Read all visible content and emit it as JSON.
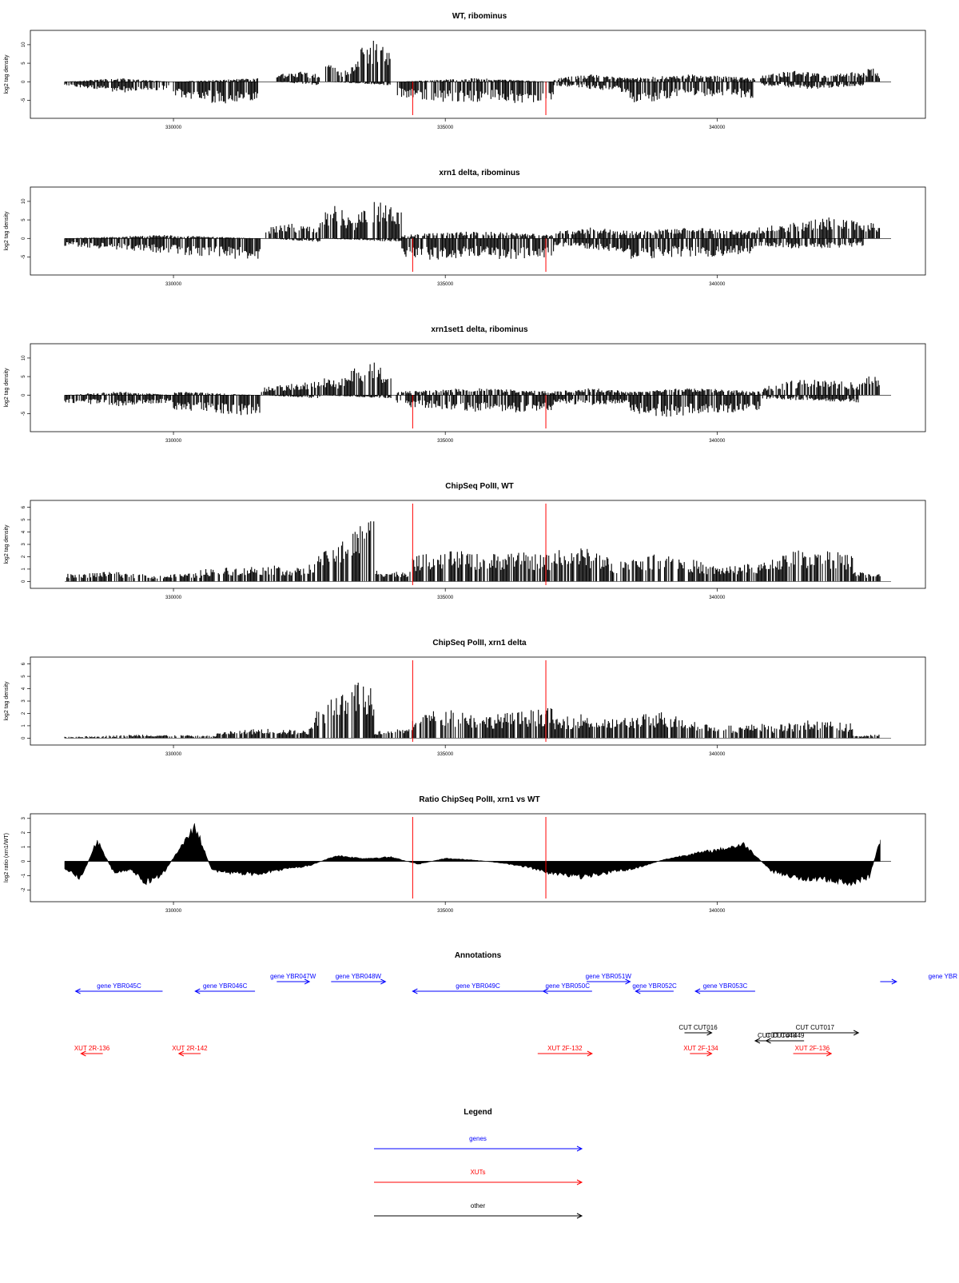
{
  "colors": {
    "genes": "#0000ff",
    "xuts": "#ff0000",
    "other": "#000000",
    "marker": "#ff0000",
    "bars": "#000000"
  },
  "x_range": [
    328000,
    343200
  ],
  "x_ticks": [
    "330000",
    "335000",
    "340000"
  ],
  "x_tick_values": [
    330000,
    335000,
    340000
  ],
  "markers_x": [
    334400,
    336850
  ],
  "chart_data": [
    {
      "type": "bar",
      "title": "WT, ribominus",
      "ylabel": "log2 tag density",
      "ylim": [
        -9,
        13
      ],
      "yticks": [
        "-5",
        "0",
        "5",
        "10"
      ],
      "ytick_values": [
        -5,
        0,
        5,
        10
      ],
      "segments": [
        {
          "x": [
            328000,
            330000
          ],
          "pos": [
            0,
            1,
            0
          ],
          "neg": [
            1,
            3,
            2
          ]
        },
        {
          "x": [
            330000,
            331600
          ],
          "pos": [
            0,
            1
          ],
          "neg": [
            4,
            6,
            5
          ]
        },
        {
          "x": [
            331900,
            332700
          ],
          "pos": [
            2,
            3,
            2
          ],
          "neg": [
            0,
            1
          ]
        },
        {
          "x": [
            332800,
            334000
          ],
          "pos": [
            6,
            3,
            4,
            11,
            12,
            9
          ],
          "neg": [
            0,
            1
          ]
        },
        {
          "x": [
            334100,
            337000
          ],
          "pos": [
            0,
            1,
            0
          ],
          "neg": [
            4,
            5,
            6,
            5,
            6,
            5
          ]
        },
        {
          "x": [
            337000,
            338400
          ],
          "pos": [
            1,
            2,
            1
          ],
          "neg": [
            1,
            2,
            3
          ]
        },
        {
          "x": [
            338400,
            340700
          ],
          "pos": [
            1,
            2,
            1
          ],
          "neg": [
            6,
            5,
            4,
            4,
            5
          ]
        },
        {
          "x": [
            340800,
            342700
          ],
          "pos": [
            2,
            3,
            2,
            3
          ],
          "neg": [
            1,
            2,
            1
          ]
        },
        {
          "x": [
            342700,
            343000
          ],
          "pos": [
            3,
            4,
            2
          ],
          "neg": [
            0
          ]
        }
      ]
    },
    {
      "type": "bar",
      "title": "xrn1 delta, ribominus",
      "ylabel": "log2 tag density",
      "ylim": [
        -9,
        13
      ],
      "yticks": [
        "-5",
        "0",
        "5",
        "10"
      ],
      "ytick_values": [
        -5,
        0,
        5,
        10
      ],
      "segments": [
        {
          "x": [
            328000,
            331600
          ],
          "pos": [
            0,
            1,
            0
          ],
          "neg": [
            2,
            3,
            4,
            5,
            6
          ]
        },
        {
          "x": [
            331700,
            332700
          ],
          "pos": [
            3,
            4,
            3
          ],
          "neg": [
            0,
            1
          ]
        },
        {
          "x": [
            332700,
            334200
          ],
          "pos": [
            7,
            9,
            5,
            10,
            11,
            8
          ],
          "neg": [
            0,
            1
          ]
        },
        {
          "x": [
            334200,
            337000
          ],
          "pos": [
            1,
            2,
            1
          ],
          "neg": [
            5,
            6,
            5,
            6,
            5
          ]
        },
        {
          "x": [
            337000,
            338400
          ],
          "pos": [
            2,
            3,
            2
          ],
          "neg": [
            2,
            3,
            4
          ]
        },
        {
          "x": [
            338400,
            340700
          ],
          "pos": [
            2,
            3,
            2
          ],
          "neg": [
            6,
            5,
            5,
            4
          ]
        },
        {
          "x": [
            340700,
            342700
          ],
          "pos": [
            3,
            4,
            5,
            6,
            4
          ],
          "neg": [
            2,
            3,
            2
          ]
        },
        {
          "x": [
            342700,
            343000
          ],
          "pos": [
            4,
            5,
            3
          ],
          "neg": [
            0
          ]
        }
      ]
    },
    {
      "type": "bar",
      "title": "xrn1set1 delta, ribominus",
      "ylabel": "log2 tag density",
      "ylim": [
        -9,
        13
      ],
      "yticks": [
        "-5",
        "0",
        "5",
        "10"
      ],
      "ytick_values": [
        -5,
        0,
        5,
        10
      ],
      "segments": [
        {
          "x": [
            328000,
            330000
          ],
          "pos": [
            0,
            1,
            0
          ],
          "neg": [
            2,
            3,
            2
          ]
        },
        {
          "x": [
            330000,
            331600
          ],
          "pos": [
            1,
            0
          ],
          "neg": [
            4,
            5,
            6
          ]
        },
        {
          "x": [
            331600,
            332700
          ],
          "pos": [
            2,
            3,
            4
          ],
          "neg": [
            0,
            1
          ]
        },
        {
          "x": [
            332700,
            334000
          ],
          "pos": [
            5,
            4,
            8,
            9,
            6
          ],
          "neg": [
            0,
            1
          ]
        },
        {
          "x": [
            334100,
            337000
          ],
          "pos": [
            1,
            2,
            1
          ],
          "neg": [
            3,
            4,
            5,
            4
          ]
        },
        {
          "x": [
            337000,
            338400
          ],
          "pos": [
            1,
            2,
            1
          ],
          "neg": [
            2,
            3,
            2
          ]
        },
        {
          "x": [
            338400,
            340800
          ],
          "pos": [
            1,
            2,
            1
          ],
          "neg": [
            5,
            6,
            5,
            4
          ]
        },
        {
          "x": [
            340800,
            342600
          ],
          "pos": [
            2,
            4,
            5,
            3
          ],
          "neg": [
            1,
            2
          ]
        },
        {
          "x": [
            342600,
            343000
          ],
          "pos": [
            3,
            6,
            4
          ],
          "neg": [
            0
          ]
        }
      ]
    },
    {
      "type": "bar",
      "title": "ChipSeq PolII, WT",
      "ylabel": "log2 tag density",
      "ylim": [
        -0.3,
        6.3
      ],
      "yticks": [
        "0",
        "1",
        "2",
        "3",
        "4",
        "5",
        "6"
      ],
      "ytick_values": [
        0,
        1,
        2,
        3,
        4,
        5,
        6
      ],
      "segments": [
        {
          "x": [
            328000,
            330500
          ],
          "pos": [
            0.6,
            0.8,
            0.5,
            0.7
          ],
          "neg": [
            0
          ]
        },
        {
          "x": [
            330500,
            332500
          ],
          "pos": [
            1,
            1.2,
            1.3,
            1
          ],
          "neg": [
            0
          ]
        },
        {
          "x": [
            332500,
            333700
          ],
          "pos": [
            1.5,
            2.5,
            3.5,
            4.5,
            5.5
          ],
          "neg": [
            0
          ]
        },
        {
          "x": [
            333700,
            334400
          ],
          "pos": [
            1,
            0.8,
            0.9
          ],
          "neg": [
            0
          ]
        },
        {
          "x": [
            334400,
            337000
          ],
          "pos": [
            2,
            2.6,
            2.2,
            2.4,
            2.1
          ],
          "neg": [
            0
          ]
        },
        {
          "x": [
            337000,
            338000
          ],
          "pos": [
            2.5,
            2.8,
            2.2
          ],
          "neg": [
            0
          ]
        },
        {
          "x": [
            338000,
            341000
          ],
          "pos": [
            1.5,
            2.5,
            1.2,
            1.6
          ],
          "neg": [
            0
          ]
        },
        {
          "x": [
            341000,
            342500
          ],
          "pos": [
            2,
            2.8,
            2.2
          ],
          "neg": [
            0
          ]
        },
        {
          "x": [
            342500,
            343000
          ],
          "pos": [
            0.8,
            0.6
          ],
          "neg": [
            0
          ]
        }
      ]
    },
    {
      "type": "bar",
      "title": "ChipSeq PolII, xrn1 delta",
      "ylabel": "log2 tag density",
      "ylim": [
        -0.3,
        6.3
      ],
      "yticks": [
        "0",
        "1",
        "2",
        "3",
        "4",
        "5",
        "6"
      ],
      "ytick_values": [
        0,
        1,
        2,
        3,
        4,
        5,
        6
      ],
      "segments": [
        {
          "x": [
            328000,
            330800
          ],
          "pos": [
            0.1,
            0.3,
            0.2
          ],
          "neg": [
            0
          ]
        },
        {
          "x": [
            330800,
            332500
          ],
          "pos": [
            0.5,
            0.8,
            0.6
          ],
          "neg": [
            0
          ]
        },
        {
          "x": [
            332500,
            333700
          ],
          "pos": [
            1.5,
            3,
            4,
            4.8,
            4.5
          ],
          "neg": [
            0
          ]
        },
        {
          "x": [
            333700,
            334400
          ],
          "pos": [
            0.6,
            0.8
          ],
          "neg": [
            0
          ]
        },
        {
          "x": [
            334400,
            337000
          ],
          "pos": [
            2,
            2.4,
            1.8,
            2.2,
            2.5
          ],
          "neg": [
            0
          ]
        },
        {
          "x": [
            337000,
            338000
          ],
          "pos": [
            1.5,
            2,
            1.6
          ],
          "neg": [
            0
          ]
        },
        {
          "x": [
            338000,
            341000
          ],
          "pos": [
            1.5,
            2.2,
            1,
            1.2
          ],
          "neg": [
            0
          ]
        },
        {
          "x": [
            341000,
            342500
          ],
          "pos": [
            1,
            1.5,
            1.2
          ],
          "neg": [
            0
          ]
        },
        {
          "x": [
            342500,
            343000
          ],
          "pos": [
            0.2,
            0.3
          ],
          "neg": [
            0
          ]
        }
      ]
    },
    {
      "type": "area",
      "title": "Ratio ChipSeq PolII, xrn1 vs WT",
      "ylabel": "log2 ratio (xrn1/WT)",
      "ylim": [
        -2.6,
        3.1
      ],
      "yticks": [
        "-2",
        "-1",
        "0",
        "1",
        "2",
        "3"
      ],
      "ytick_values": [
        -2,
        -1,
        0,
        1,
        2,
        3
      ],
      "x": [
        328000,
        328300,
        328600,
        328900,
        329200,
        329500,
        329800,
        330100,
        330400,
        330700,
        331000,
        331500,
        332000,
        332500,
        333000,
        333500,
        334000,
        334500,
        335000,
        335500,
        336000,
        336500,
        337000,
        337500,
        338000,
        338500,
        339000,
        339500,
        340000,
        340500,
        341000,
        341500,
        342000,
        342500,
        342800,
        343000
      ],
      "values": [
        -0.5,
        -1.2,
        1.5,
        -0.8,
        -0.6,
        -1.5,
        -0.9,
        0.8,
        2.5,
        -0.6,
        -0.8,
        -0.9,
        -0.6,
        -0.3,
        0.4,
        0.2,
        0.3,
        -0.2,
        0.2,
        0.1,
        -0.1,
        -0.4,
        -0.9,
        -1.1,
        -0.8,
        -0.5,
        0.1,
        0.5,
        0.8,
        1.2,
        -0.7,
        -1.2,
        -1.3,
        -1.5,
        -1.1,
        1.5
      ]
    }
  ],
  "annotations": {
    "title": "Annotations",
    "features": [
      {
        "label": "gene YBR045C",
        "start": 329800,
        "end": 328200,
        "row": 1,
        "kind": "genes"
      },
      {
        "label": "gene YBR046C",
        "start": 331500,
        "end": 330400,
        "row": 1,
        "kind": "genes"
      },
      {
        "label": "gene YBR047W",
        "start": 331900,
        "end": 332500,
        "row": 0,
        "kind": "genes"
      },
      {
        "label": "gene YBR048W",
        "start": 332900,
        "end": 333900,
        "row": 0,
        "kind": "genes"
      },
      {
        "label": "gene YBR049C",
        "start": 336800,
        "end": 334400,
        "row": 1,
        "kind": "genes"
      },
      {
        "label": "gene YBR050C",
        "start": 337700,
        "end": 336800,
        "row": 1,
        "kind": "genes"
      },
      {
        "label": "gene YBR051W",
        "start": 337600,
        "end": 338400,
        "row": 0,
        "kind": "genes"
      },
      {
        "label": "gene YBR052C",
        "start": 339200,
        "end": 338500,
        "row": 1,
        "kind": "genes"
      },
      {
        "label": "gene YBR053C",
        "start": 340700,
        "end": 339600,
        "row": 1,
        "kind": "genes"
      },
      {
        "label": "gene YBR",
        "start": 343000,
        "end": 343300,
        "row": 0,
        "kind": "genes"
      },
      {
        "label": "CUT CUT016",
        "start": 339400,
        "end": 339900,
        "row": 2,
        "kind": "other"
      },
      {
        "label": "CUT CUT017",
        "start": 341000,
        "end": 342600,
        "row": 2,
        "kind": "other"
      },
      {
        "label": "CUT CUT448",
        "start": 341500,
        "end": 340700,
        "row": 3,
        "kind": "other"
      },
      {
        "label": "CUT CUT449",
        "start": 341600,
        "end": 340900,
        "row": 3,
        "kind": "other"
      },
      {
        "label": "XUT 2R-136",
        "start": 328700,
        "end": 328300,
        "row": 4,
        "kind": "xuts"
      },
      {
        "label": "XUT 2R-142",
        "start": 330500,
        "end": 330100,
        "row": 4,
        "kind": "xuts"
      },
      {
        "label": "XUT 2F-132",
        "start": 336700,
        "end": 337700,
        "row": 4,
        "kind": "xuts"
      },
      {
        "label": "XUT 2F-134",
        "start": 339500,
        "end": 339900,
        "row": 4,
        "kind": "xuts"
      },
      {
        "label": "XUT 2F-136",
        "start": 341400,
        "end": 342100,
        "row": 4,
        "kind": "xuts"
      }
    ]
  },
  "legend": {
    "title": "Legend",
    "items": [
      {
        "label": "genes",
        "kind": "genes"
      },
      {
        "label": "XUTs",
        "kind": "xuts"
      },
      {
        "label": "other",
        "kind": "other"
      }
    ]
  }
}
